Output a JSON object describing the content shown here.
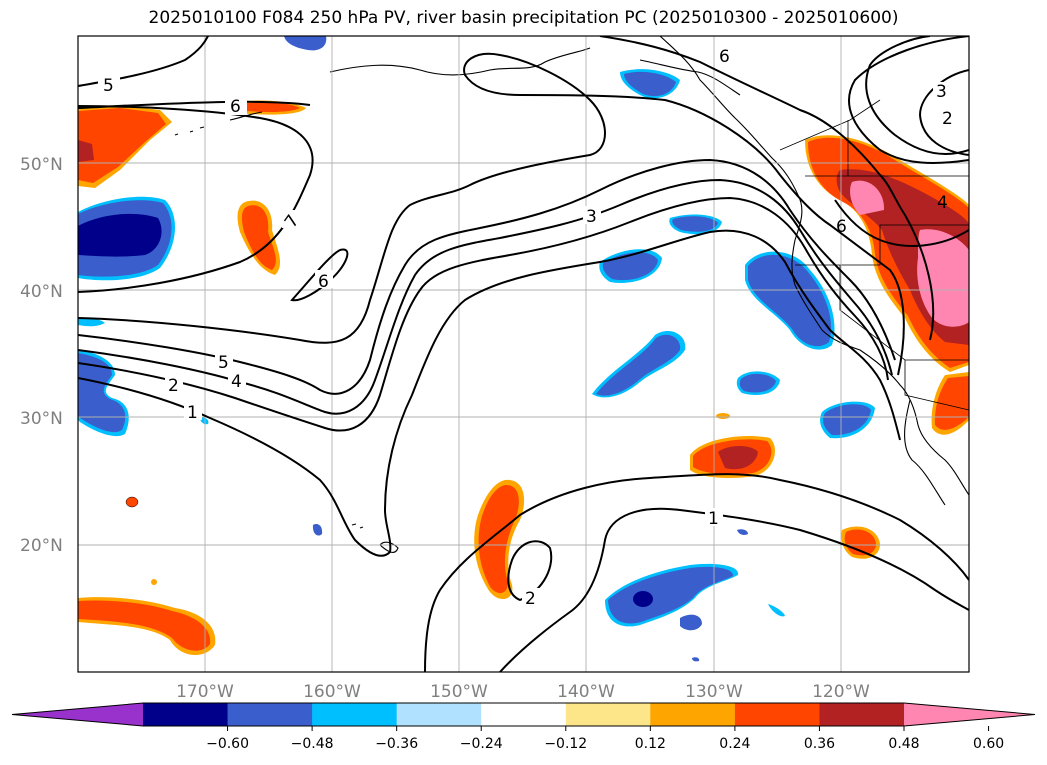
{
  "title": "2025010100 F084 250 hPa PV, river basin precipitation PC (2025010300 - 2025010600)",
  "map": {
    "lon_range": [
      -180,
      -110
    ],
    "lat_range": [
      10,
      60
    ],
    "lon_ticks": [
      "170°W",
      "160°W",
      "150°W",
      "140°W",
      "130°W",
      "120°W"
    ],
    "lat_ticks": [
      "20°N",
      "30°N",
      "40°N",
      "50°N"
    ],
    "grid": true,
    "contour_labels": [
      "5",
      "6",
      "7",
      "6",
      "5",
      "4",
      "2",
      "1",
      "3",
      "6",
      "3",
      "2",
      "4",
      "6",
      "1",
      "2"
    ]
  },
  "colorbar": {
    "ticks": [
      "−0.60",
      "−0.48",
      "−0.36",
      "−0.24",
      "−0.12",
      "0.12",
      "0.24",
      "0.36",
      "0.48",
      "0.60"
    ],
    "colors": [
      "#9932cc",
      "#00008b",
      "#3a5fcd",
      "#00bfff",
      "#b0e2ff",
      "#ffffff",
      "#fde68a",
      "#ffa500",
      "#ff4500",
      "#b22222",
      "#ff86b0"
    ],
    "extend": "both"
  }
}
